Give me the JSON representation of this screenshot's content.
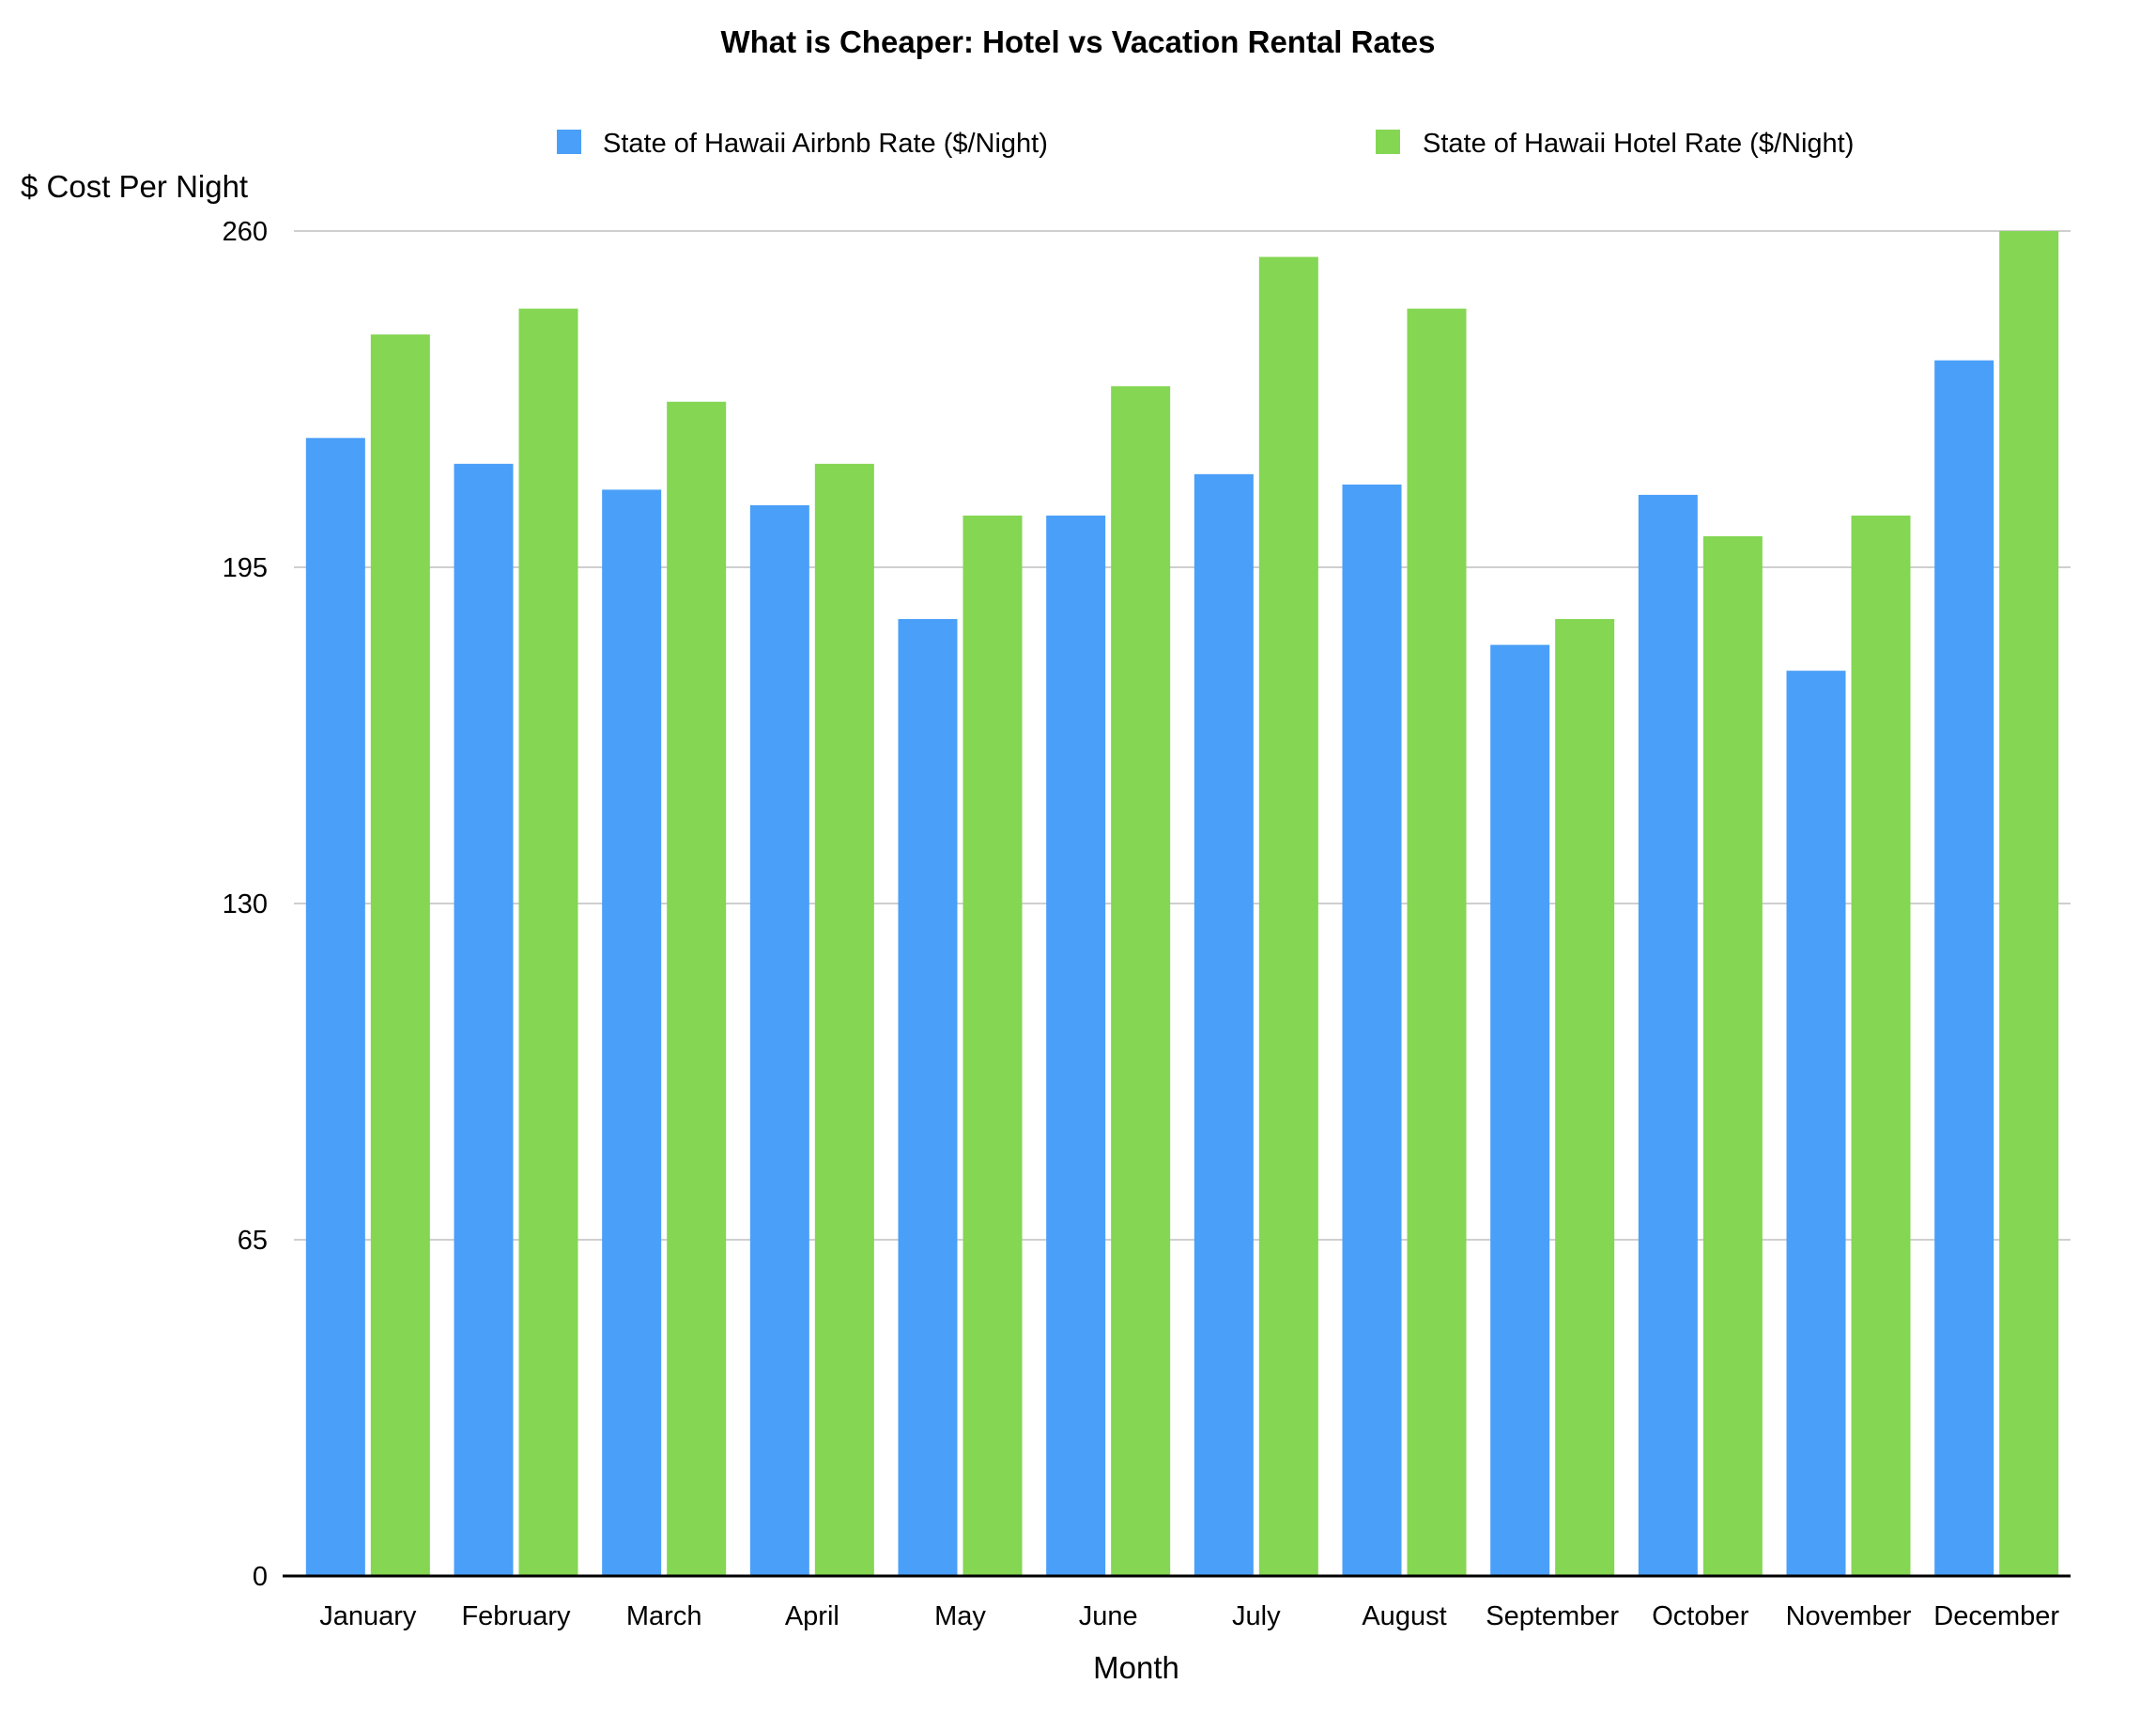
{
  "chart_data": {
    "type": "bar",
    "title": "What is Cheaper: Hotel vs Vacation Rental Rates",
    "xlabel": "Month",
    "ylabel": "$ Cost Per Night",
    "categories": [
      "January",
      "February",
      "March",
      "April",
      "May",
      "June",
      "July",
      "August",
      "September",
      "October",
      "November",
      "December"
    ],
    "series": [
      {
        "name": "State of Hawaii Airbnb Rate ($/Night)",
        "color": "#4a9ff8",
        "values": [
          220,
          215,
          210,
          207,
          185,
          205,
          213,
          211,
          180,
          209,
          175,
          235
        ]
      },
      {
        "name": "State of Hawaii Hotel Rate ($/Night)",
        "color": "#84d653",
        "values": [
          240,
          245,
          227,
          215,
          205,
          230,
          255,
          245,
          185,
          201,
          205,
          260
        ]
      }
    ],
    "ylim": [
      0,
      260
    ],
    "yticks": [
      "0",
      "65",
      "130",
      "195",
      "260"
    ],
    "grid": true,
    "legend_position": "top"
  }
}
